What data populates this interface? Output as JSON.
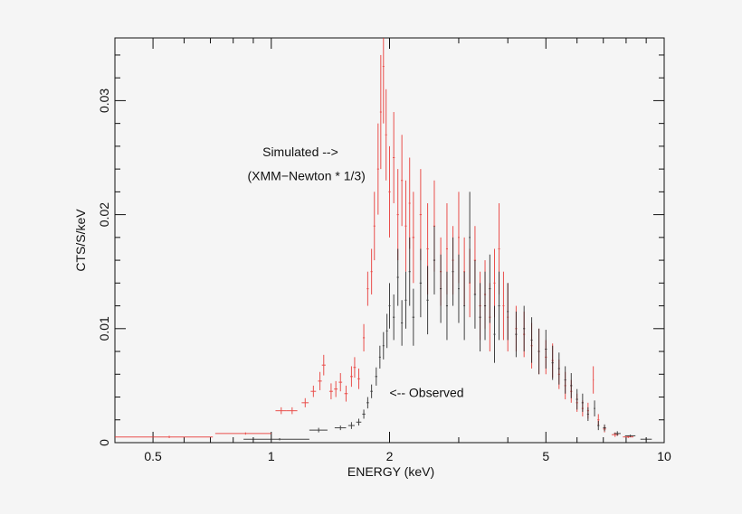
{
  "chart_data": {
    "type": "scatter",
    "xlabel": "ENERGY (keV)",
    "ylabel": "CTS/S/keV",
    "xscale": "log",
    "xlim": [
      0.4,
      10
    ],
    "ylim": [
      0,
      0.0355
    ],
    "xticks": [
      {
        "v": 0.5,
        "label": "0.5"
      },
      {
        "v": 1,
        "label": "1"
      },
      {
        "v": 2,
        "label": "2"
      },
      {
        "v": 5,
        "label": "5"
      },
      {
        "v": 10,
        "label": "10"
      }
    ],
    "yticks": [
      {
        "v": 0,
        "label": "0"
      },
      {
        "v": 0.01,
        "label": "0.01"
      },
      {
        "v": 0.02,
        "label": "0.02"
      },
      {
        "v": 0.03,
        "label": "0.03"
      }
    ],
    "grid": false,
    "annotations": [
      {
        "text": "Simulated -->",
        "x": 0.95,
        "y": 0.0251
      },
      {
        "text": "(XMM−Newton * 1/3)",
        "x": 0.87,
        "y": 0.023
      },
      {
        "text": "<-- Observed",
        "x": 2.0,
        "y": 0.004
      }
    ],
    "series": [
      {
        "color": "#e8322e",
        "points_format": "[energy, energy_halfwidth, rate, rate_err]",
        "points": [
          [
            0.55,
            0.16,
            0.0005,
            0.0001
          ],
          [
            0.86,
            0.14,
            0.0008,
            0.0001
          ],
          [
            1.06,
            0.035,
            0.0028,
            0.0003
          ],
          [
            1.13,
            0.035,
            0.0028,
            0.0003
          ],
          [
            1.22,
            0.025,
            0.0035,
            0.0004
          ],
          [
            1.28,
            0.02,
            0.0045,
            0.0005
          ],
          [
            1.33,
            0.015,
            0.0054,
            0.0008
          ],
          [
            1.36,
            0.015,
            0.0068,
            0.0009
          ],
          [
            1.42,
            0.015,
            0.0045,
            0.0007
          ],
          [
            1.46,
            0.015,
            0.0047,
            0.0007
          ],
          [
            1.5,
            0.015,
            0.0053,
            0.0008
          ],
          [
            1.55,
            0.015,
            0.0043,
            0.0007
          ],
          [
            1.6,
            0.012,
            0.0058,
            0.0009
          ],
          [
            1.63,
            0.012,
            0.0066,
            0.0009
          ],
          [
            1.67,
            0.012,
            0.0056,
            0.0009
          ],
          [
            1.72,
            0.01,
            0.0092,
            0.0012
          ],
          [
            1.76,
            0.01,
            0.0135,
            0.0015
          ],
          [
            1.8,
            0.01,
            0.015,
            0.002
          ],
          [
            1.83,
            0.01,
            0.019,
            0.003
          ],
          [
            1.87,
            0.01,
            0.024,
            0.004
          ],
          [
            1.9,
            0.01,
            0.029,
            0.005
          ],
          [
            1.93,
            0.01,
            0.033,
            0.005
          ],
          [
            1.96,
            0.01,
            0.027,
            0.004
          ],
          [
            2.0,
            0.012,
            0.022,
            0.004
          ],
          [
            2.05,
            0.012,
            0.025,
            0.004
          ],
          [
            2.1,
            0.012,
            0.02,
            0.004
          ],
          [
            2.15,
            0.012,
            0.023,
            0.004
          ],
          [
            2.2,
            0.012,
            0.019,
            0.004
          ],
          [
            2.25,
            0.012,
            0.021,
            0.004
          ],
          [
            2.3,
            0.015,
            0.018,
            0.004
          ],
          [
            2.4,
            0.015,
            0.02,
            0.004
          ],
          [
            2.5,
            0.015,
            0.017,
            0.004
          ],
          [
            2.6,
            0.015,
            0.019,
            0.004
          ],
          [
            2.7,
            0.015,
            0.015,
            0.003
          ],
          [
            2.8,
            0.015,
            0.017,
            0.004
          ],
          [
            2.9,
            0.015,
            0.016,
            0.003
          ],
          [
            3.0,
            0.015,
            0.018,
            0.004
          ],
          [
            3.1,
            0.015,
            0.015,
            0.003
          ],
          [
            3.2,
            0.015,
            0.014,
            0.003
          ],
          [
            3.3,
            0.02,
            0.016,
            0.003
          ],
          [
            3.4,
            0.02,
            0.012,
            0.003
          ],
          [
            3.5,
            0.02,
            0.013,
            0.003
          ],
          [
            3.6,
            0.02,
            0.011,
            0.003
          ],
          [
            3.7,
            0.02,
            0.014,
            0.003
          ],
          [
            3.8,
            0.02,
            0.017,
            0.004
          ],
          [
            3.9,
            0.02,
            0.012,
            0.003
          ],
          [
            4.0,
            0.02,
            0.011,
            0.003
          ],
          [
            4.2,
            0.025,
            0.01,
            0.002
          ],
          [
            4.4,
            0.025,
            0.0095,
            0.002
          ],
          [
            4.6,
            0.025,
            0.0085,
            0.002
          ],
          [
            4.8,
            0.025,
            0.008,
            0.002
          ],
          [
            5.0,
            0.03,
            0.0075,
            0.0015
          ],
          [
            5.2,
            0.03,
            0.0072,
            0.0015
          ],
          [
            5.4,
            0.03,
            0.006,
            0.0013
          ],
          [
            5.6,
            0.03,
            0.005,
            0.0012
          ],
          [
            5.8,
            0.035,
            0.0045,
            0.001
          ],
          [
            6.0,
            0.035,
            0.0035,
            0.0008
          ],
          [
            6.2,
            0.035,
            0.003,
            0.0007
          ],
          [
            6.4,
            0.035,
            0.0028,
            0.0007
          ],
          [
            6.6,
            0.02,
            0.0055,
            0.0012
          ],
          [
            6.8,
            0.04,
            0.002,
            0.0005
          ],
          [
            7.05,
            0.06,
            0.0012,
            0.0003
          ],
          [
            7.5,
            0.15,
            0.0007,
            0.0002
          ],
          [
            8.1,
            0.25,
            0.0005,
            0.0001
          ]
        ]
      },
      {
        "color": "#222222",
        "points_format": "[energy, energy_halfwidth, rate, rate_err]",
        "points": [
          [
            1.05,
            0.2,
            0.0003,
            0.0001
          ],
          [
            1.32,
            0.07,
            0.0011,
            0.0002
          ],
          [
            1.5,
            0.05,
            0.0013,
            0.0002
          ],
          [
            1.6,
            0.03,
            0.0015,
            0.0003
          ],
          [
            1.67,
            0.025,
            0.0018,
            0.0003
          ],
          [
            1.72,
            0.015,
            0.0025,
            0.0004
          ],
          [
            1.76,
            0.012,
            0.0035,
            0.0005
          ],
          [
            1.8,
            0.012,
            0.0045,
            0.0006
          ],
          [
            1.85,
            0.012,
            0.0058,
            0.0008
          ],
          [
            1.89,
            0.01,
            0.0075,
            0.001
          ],
          [
            1.93,
            0.01,
            0.0085,
            0.0012
          ],
          [
            1.97,
            0.01,
            0.0098,
            0.0015
          ],
          [
            2.0,
            0.01,
            0.012,
            0.002
          ],
          [
            2.05,
            0.012,
            0.011,
            0.002
          ],
          [
            2.1,
            0.012,
            0.0145,
            0.0025
          ],
          [
            2.15,
            0.012,
            0.0105,
            0.002
          ],
          [
            2.2,
            0.012,
            0.0125,
            0.0025
          ],
          [
            2.25,
            0.012,
            0.015,
            0.003
          ],
          [
            2.3,
            0.015,
            0.011,
            0.0025
          ],
          [
            2.4,
            0.015,
            0.014,
            0.003
          ],
          [
            2.5,
            0.015,
            0.0125,
            0.003
          ],
          [
            2.6,
            0.015,
            0.016,
            0.003
          ],
          [
            2.7,
            0.015,
            0.0135,
            0.003
          ],
          [
            2.8,
            0.015,
            0.012,
            0.003
          ],
          [
            2.9,
            0.015,
            0.015,
            0.003
          ],
          [
            3.0,
            0.015,
            0.0135,
            0.003
          ],
          [
            3.1,
            0.015,
            0.012,
            0.003
          ],
          [
            3.2,
            0.015,
            0.018,
            0.004
          ],
          [
            3.3,
            0.02,
            0.013,
            0.003
          ],
          [
            3.4,
            0.02,
            0.011,
            0.003
          ],
          [
            3.5,
            0.02,
            0.012,
            0.003
          ],
          [
            3.6,
            0.02,
            0.0135,
            0.003
          ],
          [
            3.7,
            0.02,
            0.0095,
            0.0025
          ],
          [
            3.8,
            0.02,
            0.012,
            0.003
          ],
          [
            4.0,
            0.02,
            0.0115,
            0.0025
          ],
          [
            4.2,
            0.025,
            0.0095,
            0.002
          ],
          [
            4.4,
            0.025,
            0.01,
            0.002
          ],
          [
            4.6,
            0.025,
            0.009,
            0.002
          ],
          [
            4.8,
            0.025,
            0.008,
            0.002
          ],
          [
            5.0,
            0.03,
            0.0082,
            0.0017
          ],
          [
            5.2,
            0.03,
            0.007,
            0.0015
          ],
          [
            5.4,
            0.03,
            0.0065,
            0.0014
          ],
          [
            5.6,
            0.03,
            0.0055,
            0.0012
          ],
          [
            5.8,
            0.035,
            0.005,
            0.0011
          ],
          [
            6.0,
            0.035,
            0.0038,
            0.0009
          ],
          [
            6.2,
            0.035,
            0.0035,
            0.0008
          ],
          [
            6.4,
            0.035,
            0.0025,
            0.0006
          ],
          [
            6.65,
            0.03,
            0.003,
            0.0007
          ],
          [
            6.8,
            0.04,
            0.0015,
            0.0004
          ],
          [
            7.05,
            0.06,
            0.0013,
            0.0003
          ],
          [
            7.6,
            0.15,
            0.0008,
            0.0002
          ],
          [
            8.2,
            0.25,
            0.0006,
            0.0001
          ],
          [
            9.0,
            0.3,
            0.0003,
            0.0001
          ]
        ]
      }
    ]
  }
}
